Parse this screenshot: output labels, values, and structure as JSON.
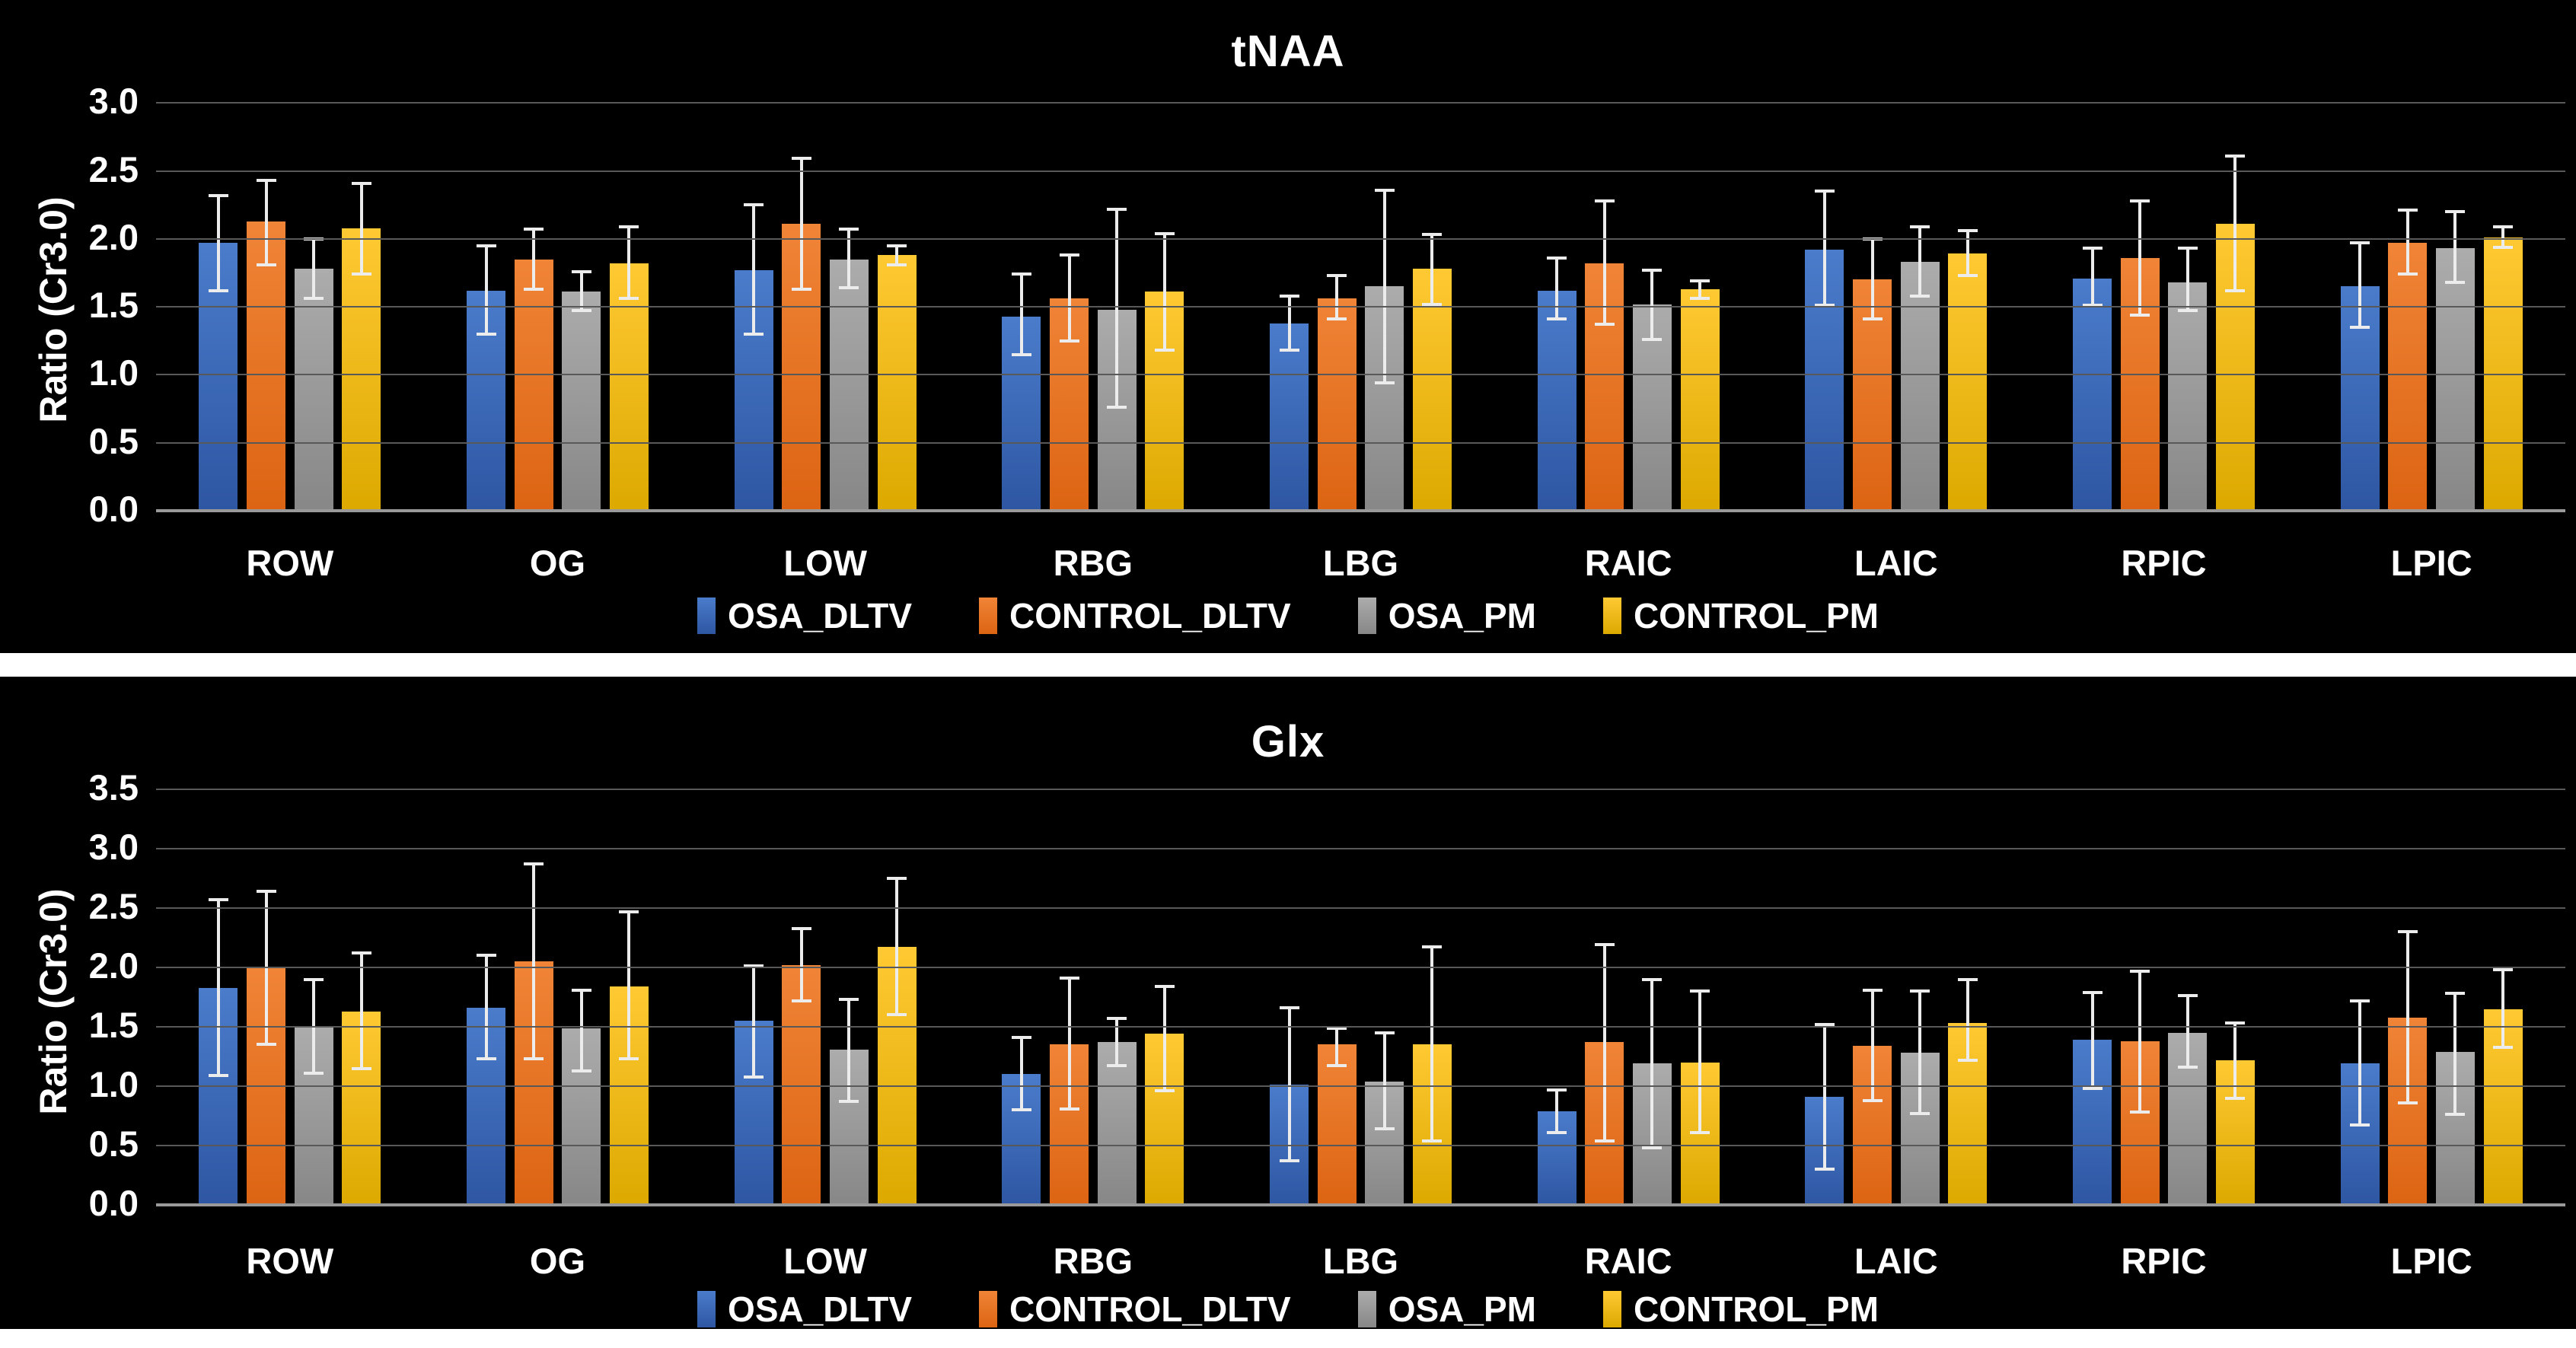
{
  "colors": {
    "page_background": "#ffffff",
    "panel_background": "#000000",
    "gridline": "#595959",
    "axis_line": "#9a9a9a",
    "error_bar": "#ececec",
    "text": "#ffffff",
    "series": {
      "OSA_DLTV": {
        "top": "#4a7ccb",
        "bottom": "#2e56a2"
      },
      "CONTROL_DLTV": {
        "top": "#f08437",
        "bottom": "#dc6413"
      },
      "OSA_PM": {
        "top": "#acacac",
        "bottom": "#878787"
      },
      "CONTROL_PM": {
        "top": "#ffc933",
        "bottom": "#dca900"
      }
    }
  },
  "chart_data": [
    {
      "type": "bar",
      "title": "tNAA",
      "xlabel": "",
      "ylabel": "Ratio (Cr3.0)",
      "ylim": [
        0,
        3.0
      ],
      "ytick_step": 0.5,
      "ytick_labels": [
        "3.0",
        "2.5",
        "2.0",
        "1.5",
        "1.0",
        "0.5",
        "0.0"
      ],
      "grid": true,
      "legend_position": "bottom",
      "error_bars": true,
      "categories": [
        "ROW",
        "OG",
        "LOW",
        "RBG",
        "LBG",
        "RAIC",
        "LAIC",
        "RPIC",
        "LPIC"
      ],
      "series": [
        {
          "name": "OSA_DLTV",
          "values": [
            1.97,
            1.62,
            1.77,
            1.43,
            1.38,
            1.62,
            1.92,
            1.71,
            1.65
          ],
          "err_low": [
            1.62,
            1.3,
            1.3,
            1.15,
            1.18,
            1.41,
            1.51,
            1.51,
            1.35
          ],
          "err_high": [
            2.32,
            1.95,
            2.25,
            1.74,
            1.58,
            1.86,
            2.35,
            1.93,
            1.97
          ]
        },
        {
          "name": "CONTROL_DLTV",
          "values": [
            2.13,
            1.85,
            2.11,
            1.56,
            1.56,
            1.82,
            1.7,
            1.86,
            1.97
          ],
          "err_low": [
            1.81,
            1.63,
            1.63,
            1.25,
            1.41,
            1.37,
            1.41,
            1.44,
            1.74
          ],
          "err_high": [
            2.43,
            2.07,
            2.59,
            1.88,
            1.73,
            2.28,
            2.0,
            2.28,
            2.21
          ]
        },
        {
          "name": "OSA_PM",
          "values": [
            1.78,
            1.61,
            1.85,
            1.48,
            1.65,
            1.52,
            1.83,
            1.68,
            1.93
          ],
          "err_low": [
            1.56,
            1.47,
            1.64,
            0.76,
            0.94,
            1.26,
            1.58,
            1.47,
            1.68
          ],
          "err_high": [
            2.0,
            1.76,
            2.07,
            2.22,
            2.36,
            1.77,
            2.09,
            1.93,
            2.2
          ]
        },
        {
          "name": "CONTROL_PM",
          "values": [
            2.08,
            1.82,
            1.88,
            1.61,
            1.78,
            1.63,
            1.89,
            2.11,
            2.01
          ],
          "err_low": [
            1.74,
            1.56,
            1.81,
            1.18,
            1.52,
            1.56,
            1.73,
            1.62,
            1.94
          ],
          "err_high": [
            2.41,
            2.09,
            1.95,
            2.04,
            2.03,
            1.69,
            2.06,
            2.61,
            2.09
          ]
        }
      ]
    },
    {
      "type": "bar",
      "title": "Glx",
      "xlabel": "",
      "ylabel": "Ratio (Cr3.0)",
      "ylim": [
        0,
        3.5
      ],
      "ytick_step": 0.5,
      "ytick_labels": [
        "3.5",
        "3.0",
        "2.5",
        "2.0",
        "1.5",
        "1.0",
        "0.5",
        "0.0"
      ],
      "grid": true,
      "legend_position": "bottom",
      "error_bars": true,
      "categories": [
        "ROW",
        "OG",
        "LOW",
        "RBG",
        "LBG",
        "RAIC",
        "LAIC",
        "RPIC",
        "LPIC"
      ],
      "series": [
        {
          "name": "OSA_DLTV",
          "values": [
            1.83,
            1.66,
            1.55,
            1.1,
            1.01,
            0.79,
            0.91,
            1.39,
            1.19
          ],
          "err_low": [
            1.09,
            1.23,
            1.08,
            0.8,
            0.37,
            0.61,
            0.3,
            0.98,
            0.67
          ],
          "err_high": [
            2.57,
            2.1,
            2.01,
            1.41,
            1.66,
            0.97,
            1.52,
            1.79,
            1.72
          ]
        },
        {
          "name": "CONTROL_DLTV",
          "values": [
            2.0,
            2.05,
            2.02,
            1.35,
            1.35,
            1.37,
            1.34,
            1.38,
            1.58
          ],
          "err_low": [
            1.35,
            1.23,
            1.72,
            0.81,
            1.17,
            0.54,
            0.88,
            0.78,
            0.86
          ],
          "err_high": [
            2.64,
            2.87,
            2.33,
            1.91,
            1.49,
            2.19,
            1.81,
            1.97,
            2.3
          ]
        },
        {
          "name": "OSA_PM",
          "values": [
            1.5,
            1.49,
            1.31,
            1.37,
            1.04,
            1.19,
            1.28,
            1.45,
            1.29
          ],
          "err_low": [
            1.11,
            1.13,
            0.87,
            1.17,
            0.64,
            0.48,
            0.77,
            1.16,
            0.76
          ],
          "err_high": [
            1.9,
            1.81,
            1.73,
            1.57,
            1.45,
            1.9,
            1.8,
            1.76,
            1.78
          ]
        },
        {
          "name": "CONTROL_PM",
          "values": [
            1.63,
            1.84,
            2.17,
            1.44,
            1.35,
            1.2,
            1.53,
            1.22,
            1.65
          ],
          "err_low": [
            1.15,
            1.23,
            1.6,
            0.96,
            0.54,
            0.61,
            1.22,
            0.9,
            1.33
          ],
          "err_high": [
            2.12,
            2.47,
            2.75,
            1.84,
            2.17,
            1.8,
            1.9,
            1.53,
            1.98
          ]
        }
      ]
    }
  ]
}
